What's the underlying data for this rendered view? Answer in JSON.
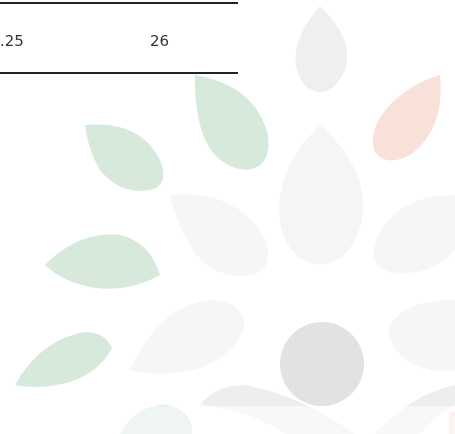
{
  "table": {
    "rows": [
      [
        ".25",
        "26"
      ]
    ]
  }
}
